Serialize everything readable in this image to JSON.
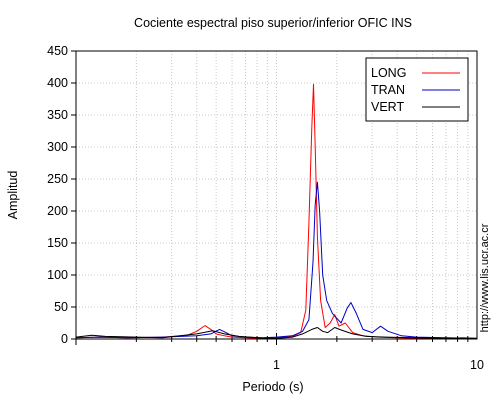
{
  "chart_data": {
    "type": "line",
    "title": "Cociente espectral piso superior/inferior  OFIC INS",
    "xlabel": "Periodo (s)",
    "ylabel": "Amplitud",
    "xscale": "log",
    "xlim": [
      0.1,
      10
    ],
    "ylim": [
      0,
      450
    ],
    "y_ticks": [
      0,
      50,
      100,
      150,
      200,
      250,
      300,
      350,
      400,
      450
    ],
    "x_tick_labels": [
      {
        "value": 1,
        "label": "1"
      },
      {
        "value": 10,
        "label": "10"
      }
    ],
    "grid": true,
    "legend_position": "top-right",
    "series": [
      {
        "name": "LONG",
        "color": "#ff0000",
        "points": [
          [
            0.1,
            2
          ],
          [
            0.13,
            3
          ],
          [
            0.18,
            2
          ],
          [
            0.27,
            3
          ],
          [
            0.36,
            6
          ],
          [
            0.4,
            12
          ],
          [
            0.44,
            21
          ],
          [
            0.47,
            15
          ],
          [
            0.5,
            8
          ],
          [
            0.55,
            5
          ],
          [
            0.6,
            3
          ],
          [
            0.7,
            2
          ],
          [
            0.85,
            1
          ],
          [
            1.0,
            2
          ],
          [
            1.2,
            4
          ],
          [
            1.32,
            10
          ],
          [
            1.4,
            45
          ],
          [
            1.45,
            180
          ],
          [
            1.5,
            330
          ],
          [
            1.53,
            398
          ],
          [
            1.56,
            300
          ],
          [
            1.6,
            160
          ],
          [
            1.66,
            60
          ],
          [
            1.75,
            18
          ],
          [
            1.85,
            25
          ],
          [
            1.95,
            38
          ],
          [
            2.05,
            20
          ],
          [
            2.2,
            25
          ],
          [
            2.4,
            10
          ],
          [
            2.7,
            5
          ],
          [
            3.2,
            3
          ],
          [
            4,
            2
          ],
          [
            5,
            1
          ],
          [
            7,
            1
          ],
          [
            8.5,
            2
          ],
          [
            10,
            1
          ]
        ]
      },
      {
        "name": "TRAN",
        "color": "#0000c8",
        "points": [
          [
            0.1,
            2
          ],
          [
            0.13,
            3
          ],
          [
            0.18,
            2
          ],
          [
            0.27,
            3
          ],
          [
            0.4,
            5
          ],
          [
            0.47,
            8
          ],
          [
            0.52,
            15
          ],
          [
            0.56,
            10
          ],
          [
            0.6,
            5
          ],
          [
            0.7,
            3
          ],
          [
            0.85,
            2
          ],
          [
            1.0,
            3
          ],
          [
            1.2,
            5
          ],
          [
            1.35,
            12
          ],
          [
            1.45,
            30
          ],
          [
            1.52,
            120
          ],
          [
            1.56,
            210
          ],
          [
            1.6,
            245
          ],
          [
            1.64,
            200
          ],
          [
            1.7,
            100
          ],
          [
            1.78,
            60
          ],
          [
            1.9,
            40
          ],
          [
            2.1,
            25
          ],
          [
            2.25,
            48
          ],
          [
            2.35,
            57
          ],
          [
            2.5,
            40
          ],
          [
            2.7,
            15
          ],
          [
            3.0,
            10
          ],
          [
            3.3,
            20
          ],
          [
            3.6,
            12
          ],
          [
            4.2,
            5
          ],
          [
            5,
            3
          ],
          [
            7,
            2
          ],
          [
            10,
            1
          ]
        ]
      },
      {
        "name": "VERT",
        "color": "#000000",
        "points": [
          [
            0.1,
            3
          ],
          [
            0.12,
            6
          ],
          [
            0.14,
            4
          ],
          [
            0.2,
            3
          ],
          [
            0.27,
            2
          ],
          [
            0.4,
            8
          ],
          [
            0.48,
            13
          ],
          [
            0.55,
            8
          ],
          [
            0.65,
            4
          ],
          [
            0.8,
            2
          ],
          [
            1.0,
            1
          ],
          [
            1.2,
            3
          ],
          [
            1.35,
            8
          ],
          [
            1.5,
            15
          ],
          [
            1.6,
            18
          ],
          [
            1.7,
            12
          ],
          [
            1.8,
            10
          ],
          [
            1.95,
            18
          ],
          [
            2.1,
            14
          ],
          [
            2.4,
            8
          ],
          [
            2.8,
            4
          ],
          [
            3.5,
            3
          ],
          [
            5,
            2
          ],
          [
            10,
            1
          ]
        ]
      }
    ]
  },
  "watermark": "http://www.lis.ucr.ac.cr"
}
